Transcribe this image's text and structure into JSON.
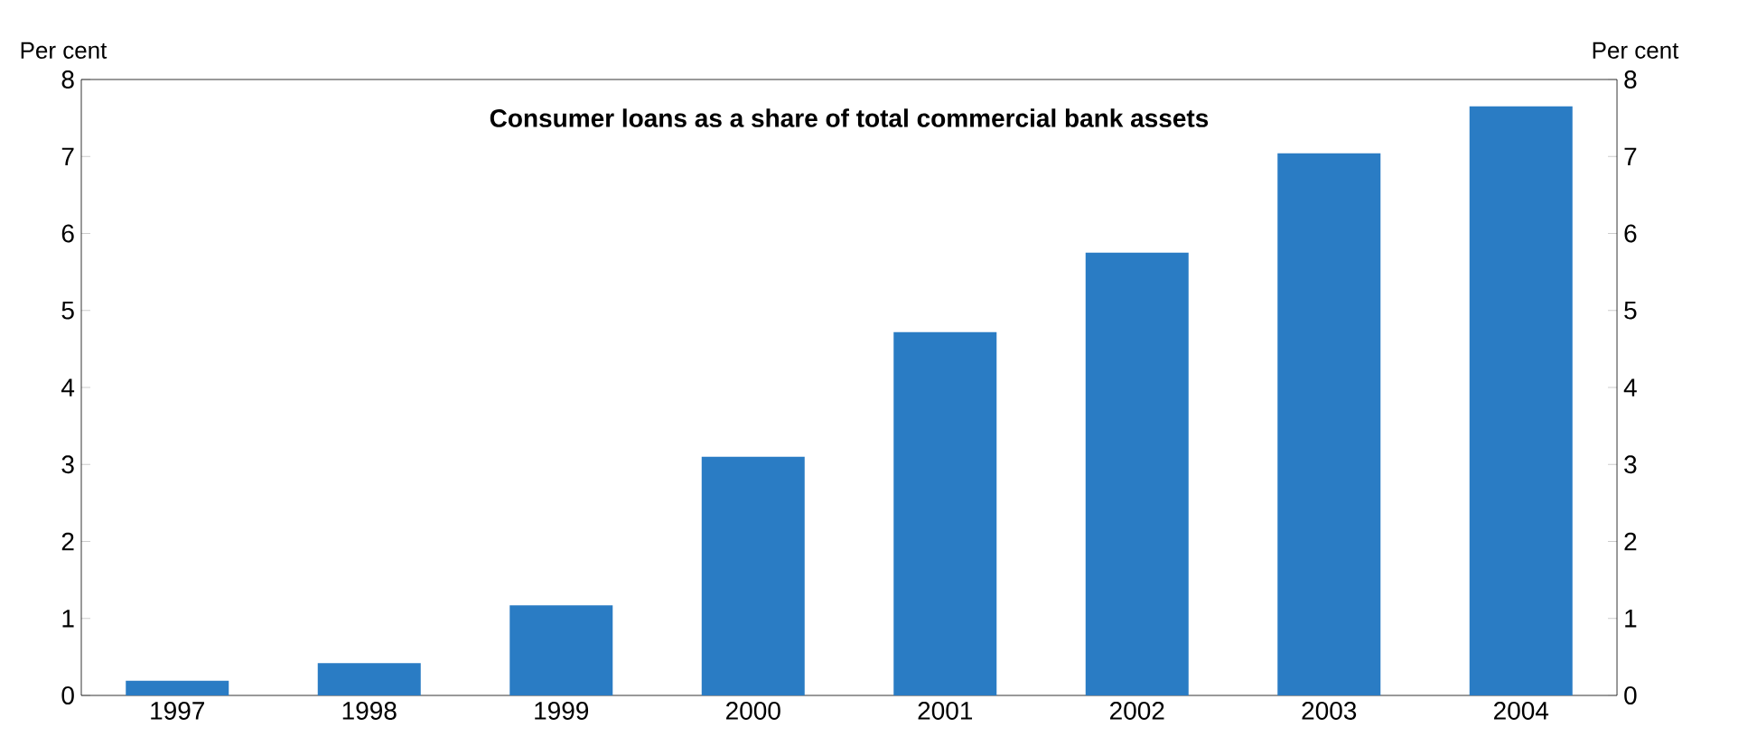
{
  "chart_data": {
    "type": "bar",
    "title": "Consumer loans as a share of total commercial bank assets",
    "ylabel": "Per cent",
    "y2label": "Per cent",
    "categories": [
      "1997",
      "1998",
      "1999",
      "2000",
      "2001",
      "2002",
      "2003",
      "2004"
    ],
    "values": [
      0.19,
      0.42,
      1.17,
      3.1,
      4.72,
      5.75,
      7.04,
      7.65
    ],
    "color": "#2a7cc4",
    "ylim": [
      0,
      8
    ],
    "yticks": [
      0,
      1,
      2,
      3,
      4,
      5,
      6,
      7,
      8
    ],
    "y2lim": [
      0,
      8
    ],
    "y2ticks": [
      0,
      1,
      2,
      3,
      4,
      5,
      6,
      7,
      8
    ],
    "grid": false
  }
}
